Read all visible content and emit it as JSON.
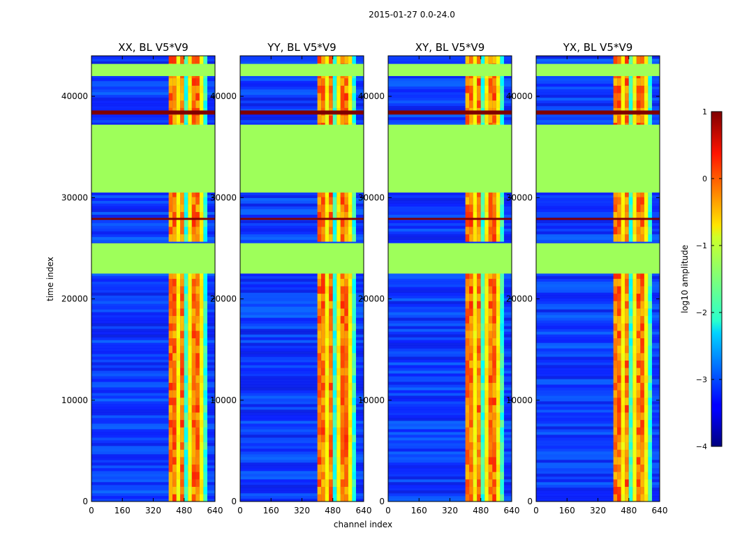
{
  "chart_data": {
    "type": "heatmap",
    "title": "2015-01-27 0.0-24.0",
    "xlabel": "channel index",
    "ylabel": "time index",
    "xlim": [
      0,
      640
    ],
    "ylim": [
      0,
      44000
    ],
    "xticks": [
      "0",
      "160",
      "320",
      "480",
      "640"
    ],
    "yticks": [
      "0",
      "10000",
      "20000",
      "30000",
      "40000"
    ],
    "panels": [
      {
        "title": "XX, BL V5*V9"
      },
      {
        "title": "YY, BL V5*V9"
      },
      {
        "title": "XY, BL V5*V9"
      },
      {
        "title": "YX, BL V5*V9"
      }
    ],
    "colorbar": {
      "label": "log10 amplitude",
      "range": [
        -4,
        1
      ],
      "ticks": [
        "1",
        "0",
        "−1",
        "−2",
        "−3",
        "−4"
      ],
      "colormap": "jet"
    },
    "features": {
      "flagged_time_ranges": [
        [
          22500,
          25500
        ],
        [
          30500,
          37200
        ],
        [
          42000,
          43200
        ]
      ],
      "flagged_value": -0.9,
      "saturated_time_ranges": [
        [
          38200,
          38600
        ],
        [
          27800,
          28000
        ]
      ],
      "bright_channel_range": [
        400,
        600
      ],
      "bright_time_ranges": [
        [
          0,
          23000
        ],
        [
          25500,
          44000
        ]
      ],
      "background_value": -3.2
    }
  },
  "colors": {
    "flagged": "#9eff5a",
    "saturated": "#800000",
    "background": "#1e50ff"
  }
}
